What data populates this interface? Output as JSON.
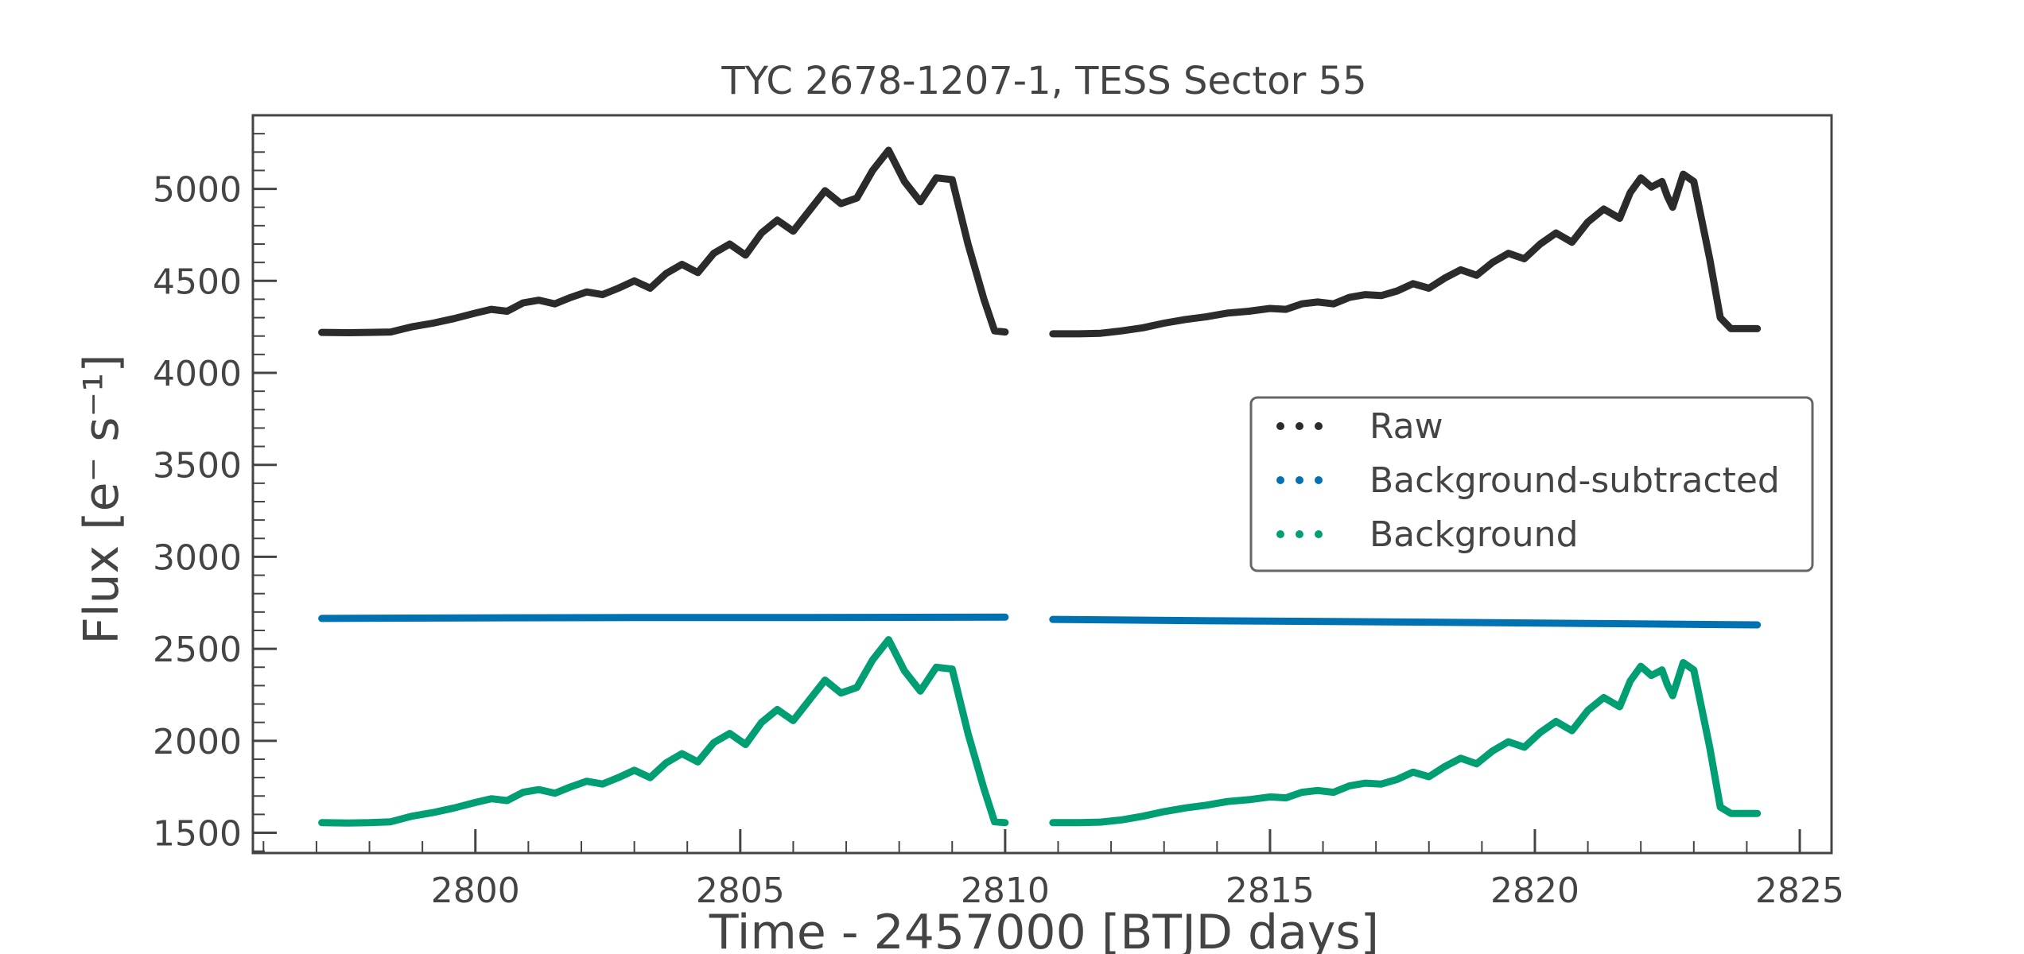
{
  "chart_data": {
    "type": "scatter",
    "title": "TYC 2678-1207-1, TESS Sector 55",
    "xlabel": "Time - 2457000 [BTJD days]",
    "ylabel": "Flux [e⁻ s⁻¹]",
    "xlim": [
      2795.8,
      2825.6
    ],
    "ylim": [
      1390,
      5400
    ],
    "xticks": [
      2800,
      2805,
      2810,
      2815,
      2820,
      2825
    ],
    "yticks": [
      1500,
      2000,
      2500,
      3000,
      3500,
      4000,
      4500,
      5000
    ],
    "xtick_labels": [
      "2800",
      "2805",
      "2810",
      "2815",
      "2820",
      "2825"
    ],
    "ytick_labels": [
      "1500",
      "2000",
      "2500",
      "3000",
      "3500",
      "4000",
      "4500",
      "5000"
    ],
    "grid": false,
    "legend_position": "center-right",
    "series": [
      {
        "name": "Raw",
        "color": "#2b2b2b",
        "segments": [
          [
            [
              2797.1,
              4220
            ],
            [
              2797.6,
              4218
            ],
            [
              2798.0,
              4220
            ],
            [
              2798.4,
              4222
            ],
            [
              2798.8,
              4250
            ],
            [
              2799.2,
              4270
            ],
            [
              2799.6,
              4295
            ],
            [
              2800.0,
              4325
            ],
            [
              2800.3,
              4345
            ],
            [
              2800.6,
              4335
            ],
            [
              2800.9,
              4380
            ],
            [
              2801.2,
              4395
            ],
            [
              2801.5,
              4375
            ],
            [
              2801.8,
              4410
            ],
            [
              2802.1,
              4440
            ],
            [
              2802.4,
              4425
            ],
            [
              2802.7,
              4460
            ],
            [
              2803.0,
              4500
            ],
            [
              2803.3,
              4460
            ],
            [
              2803.6,
              4540
            ],
            [
              2803.9,
              4590
            ],
            [
              2804.2,
              4545
            ],
            [
              2804.5,
              4650
            ],
            [
              2804.8,
              4700
            ],
            [
              2805.1,
              4640
            ],
            [
              2805.4,
              4760
            ],
            [
              2805.7,
              4830
            ],
            [
              2806.0,
              4770
            ],
            [
              2806.3,
              4880
            ],
            [
              2806.6,
              4990
            ],
            [
              2806.9,
              4920
            ],
            [
              2807.2,
              4950
            ],
            [
              2807.5,
              5100
            ],
            [
              2807.8,
              5210
            ],
            [
              2808.1,
              5040
            ],
            [
              2808.4,
              4930
            ],
            [
              2808.7,
              5060
            ],
            [
              2809.0,
              5050
            ],
            [
              2809.3,
              4700
            ],
            [
              2809.6,
              4400
            ],
            [
              2809.8,
              4228
            ],
            [
              2810.0,
              4222
            ]
          ],
          [
            [
              2810.9,
              4212
            ],
            [
              2811.4,
              4212
            ],
            [
              2811.8,
              4215
            ],
            [
              2812.2,
              4228
            ],
            [
              2812.6,
              4245
            ],
            [
              2813.0,
              4270
            ],
            [
              2813.4,
              4290
            ],
            [
              2813.8,
              4305
            ],
            [
              2814.2,
              4325
            ],
            [
              2814.6,
              4335
            ],
            [
              2815.0,
              4350
            ],
            [
              2815.3,
              4345
            ],
            [
              2815.6,
              4375
            ],
            [
              2815.9,
              4385
            ],
            [
              2816.2,
              4375
            ],
            [
              2816.5,
              4410
            ],
            [
              2816.8,
              4425
            ],
            [
              2817.1,
              4420
            ],
            [
              2817.4,
              4445
            ],
            [
              2817.7,
              4485
            ],
            [
              2818.0,
              4460
            ],
            [
              2818.3,
              4515
            ],
            [
              2818.6,
              4560
            ],
            [
              2818.9,
              4530
            ],
            [
              2819.2,
              4600
            ],
            [
              2819.5,
              4650
            ],
            [
              2819.8,
              4620
            ],
            [
              2820.1,
              4700
            ],
            [
              2820.4,
              4760
            ],
            [
              2820.7,
              4710
            ],
            [
              2821.0,
              4820
            ],
            [
              2821.3,
              4890
            ],
            [
              2821.6,
              4840
            ],
            [
              2821.8,
              4980
            ],
            [
              2822.0,
              5060
            ],
            [
              2822.2,
              5010
            ],
            [
              2822.4,
              5040
            ],
            [
              2822.5,
              4960
            ],
            [
              2822.6,
              4900
            ],
            [
              2822.8,
              5080
            ],
            [
              2823.0,
              5040
            ],
            [
              2823.3,
              4620
            ],
            [
              2823.5,
              4300
            ],
            [
              2823.7,
              4240
            ],
            [
              2824.2,
              4240
            ]
          ]
        ]
      },
      {
        "name": "Background-subtracted",
        "color": "#0072b2",
        "segments": [
          [
            [
              2797.1,
              2665
            ],
            [
              2800.0,
              2668
            ],
            [
              2803.0,
              2670
            ],
            [
              2806.0,
              2670
            ],
            [
              2810.0,
              2672
            ]
          ],
          [
            [
              2810.9,
              2660
            ],
            [
              2814.0,
              2652
            ],
            [
              2818.0,
              2645
            ],
            [
              2821.0,
              2638
            ],
            [
              2824.2,
              2630
            ]
          ]
        ]
      },
      {
        "name": "Background",
        "color": "#009e73",
        "segments": [
          [
            [
              2797.1,
              1555
            ],
            [
              2797.6,
              1553
            ],
            [
              2798.0,
              1555
            ],
            [
              2798.4,
              1560
            ],
            [
              2798.8,
              1590
            ],
            [
              2799.2,
              1610
            ],
            [
              2799.6,
              1635
            ],
            [
              2800.0,
              1665
            ],
            [
              2800.3,
              1685
            ],
            [
              2800.6,
              1675
            ],
            [
              2800.9,
              1720
            ],
            [
              2801.2,
              1735
            ],
            [
              2801.5,
              1715
            ],
            [
              2801.8,
              1750
            ],
            [
              2802.1,
              1780
            ],
            [
              2802.4,
              1765
            ],
            [
              2802.7,
              1800
            ],
            [
              2803.0,
              1840
            ],
            [
              2803.3,
              1800
            ],
            [
              2803.6,
              1880
            ],
            [
              2803.9,
              1930
            ],
            [
              2804.2,
              1885
            ],
            [
              2804.5,
              1990
            ],
            [
              2804.8,
              2040
            ],
            [
              2805.1,
              1980
            ],
            [
              2805.4,
              2100
            ],
            [
              2805.7,
              2170
            ],
            [
              2806.0,
              2110
            ],
            [
              2806.3,
              2220
            ],
            [
              2806.6,
              2330
            ],
            [
              2806.9,
              2260
            ],
            [
              2807.2,
              2290
            ],
            [
              2807.5,
              2440
            ],
            [
              2807.8,
              2550
            ],
            [
              2808.1,
              2380
            ],
            [
              2808.4,
              2270
            ],
            [
              2808.7,
              2400
            ],
            [
              2809.0,
              2390
            ],
            [
              2809.3,
              2040
            ],
            [
              2809.6,
              1740
            ],
            [
              2809.8,
              1560
            ],
            [
              2810.0,
              1555
            ]
          ],
          [
            [
              2810.9,
              1555
            ],
            [
              2811.4,
              1555
            ],
            [
              2811.8,
              1558
            ],
            [
              2812.2,
              1570
            ],
            [
              2812.6,
              1590
            ],
            [
              2813.0,
              1615
            ],
            [
              2813.4,
              1635
            ],
            [
              2813.8,
              1650
            ],
            [
              2814.2,
              1670
            ],
            [
              2814.6,
              1680
            ],
            [
              2815.0,
              1695
            ],
            [
              2815.3,
              1690
            ],
            [
              2815.6,
              1720
            ],
            [
              2815.9,
              1730
            ],
            [
              2816.2,
              1720
            ],
            [
              2816.5,
              1755
            ],
            [
              2816.8,
              1770
            ],
            [
              2817.1,
              1765
            ],
            [
              2817.4,
              1790
            ],
            [
              2817.7,
              1830
            ],
            [
              2818.0,
              1805
            ],
            [
              2818.3,
              1860
            ],
            [
              2818.6,
              1905
            ],
            [
              2818.9,
              1875
            ],
            [
              2819.2,
              1945
            ],
            [
              2819.5,
              1995
            ],
            [
              2819.8,
              1965
            ],
            [
              2820.1,
              2045
            ],
            [
              2820.4,
              2105
            ],
            [
              2820.7,
              2055
            ],
            [
              2821.0,
              2165
            ],
            [
              2821.3,
              2235
            ],
            [
              2821.6,
              2185
            ],
            [
              2821.8,
              2325
            ],
            [
              2822.0,
              2405
            ],
            [
              2822.2,
              2355
            ],
            [
              2822.4,
              2385
            ],
            [
              2822.5,
              2305
            ],
            [
              2822.6,
              2245
            ],
            [
              2822.8,
              2425
            ],
            [
              2823.0,
              2385
            ],
            [
              2823.3,
              1965
            ],
            [
              2823.5,
              1640
            ],
            [
              2823.7,
              1605
            ],
            [
              2824.2,
              1605
            ]
          ]
        ]
      }
    ]
  }
}
